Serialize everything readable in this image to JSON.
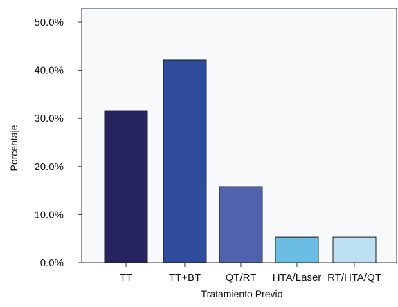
{
  "chart_data": {
    "type": "bar",
    "categories": [
      "TT",
      "TT+BT",
      "QT/RT",
      "HTA/Laser",
      "RT/HTA/QT"
    ],
    "values": [
      31.6,
      42.1,
      15.8,
      5.3,
      5.3
    ],
    "bar_colors": [
      "#25245f",
      "#2f4b9c",
      "#4e62ad",
      "#6cbde4",
      "#bde0f5"
    ],
    "xlabel": "Tratamiento Previo",
    "ylabel": "Porcentaje",
    "ylim": [
      0,
      50
    ],
    "y_ticks": [
      0,
      10,
      20,
      30,
      40,
      50
    ],
    "y_tick_labels": [
      "0.0%",
      "10.0%",
      "20.0%",
      "30.0%",
      "40.0%",
      "50.0%"
    ],
    "grid": false,
    "legend": "none",
    "plot_background": "#f8f9fb"
  }
}
